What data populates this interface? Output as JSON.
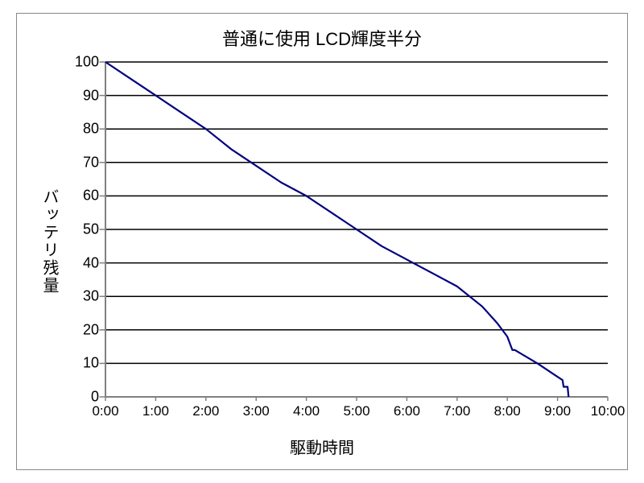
{
  "chart": {
    "type": "line",
    "title": "普通に使用 LCD輝度半分",
    "xlabel": "駆動時間",
    "ylabel": "バッテリ残量",
    "title_fontsize": 22,
    "label_fontsize": 20,
    "tick_fontsize": 18,
    "background_color": "#ffffff",
    "outer_background": "#e8e8e8",
    "grid_color": "#000000",
    "axis_color": "#808080",
    "border_color": "#888888",
    "line_color": "#000080",
    "line_width": 2.2,
    "xlim": [
      0,
      10
    ],
    "ylim": [
      0,
      100
    ],
    "xtick_step": 1,
    "ytick_step": 10,
    "xticks": [
      "0:00",
      "1:00",
      "2:00",
      "3:00",
      "4:00",
      "5:00",
      "6:00",
      "7:00",
      "8:00",
      "9:00",
      "10:00"
    ],
    "yticks": [
      "0",
      "10",
      "20",
      "30",
      "40",
      "50",
      "60",
      "70",
      "80",
      "90",
      "100"
    ],
    "grid_horizontal": true,
    "grid_vertical": false,
    "series": [
      {
        "x": 0.0,
        "y": 100
      },
      {
        "x": 0.5,
        "y": 95
      },
      {
        "x": 1.0,
        "y": 90
      },
      {
        "x": 1.5,
        "y": 85
      },
      {
        "x": 2.0,
        "y": 80
      },
      {
        "x": 2.5,
        "y": 74
      },
      {
        "x": 3.0,
        "y": 69
      },
      {
        "x": 3.5,
        "y": 64
      },
      {
        "x": 4.0,
        "y": 60
      },
      {
        "x": 4.5,
        "y": 55
      },
      {
        "x": 5.0,
        "y": 50
      },
      {
        "x": 5.5,
        "y": 45
      },
      {
        "x": 6.0,
        "y": 41
      },
      {
        "x": 6.5,
        "y": 37
      },
      {
        "x": 7.0,
        "y": 33
      },
      {
        "x": 7.5,
        "y": 27
      },
      {
        "x": 7.8,
        "y": 22
      },
      {
        "x": 8.0,
        "y": 18
      },
      {
        "x": 8.1,
        "y": 14
      },
      {
        "x": 8.15,
        "y": 14
      },
      {
        "x": 8.6,
        "y": 10
      },
      {
        "x": 9.0,
        "y": 6
      },
      {
        "x": 9.1,
        "y": 5
      },
      {
        "x": 9.12,
        "y": 3
      },
      {
        "x": 9.2,
        "y": 3
      },
      {
        "x": 9.22,
        "y": 0
      }
    ]
  }
}
